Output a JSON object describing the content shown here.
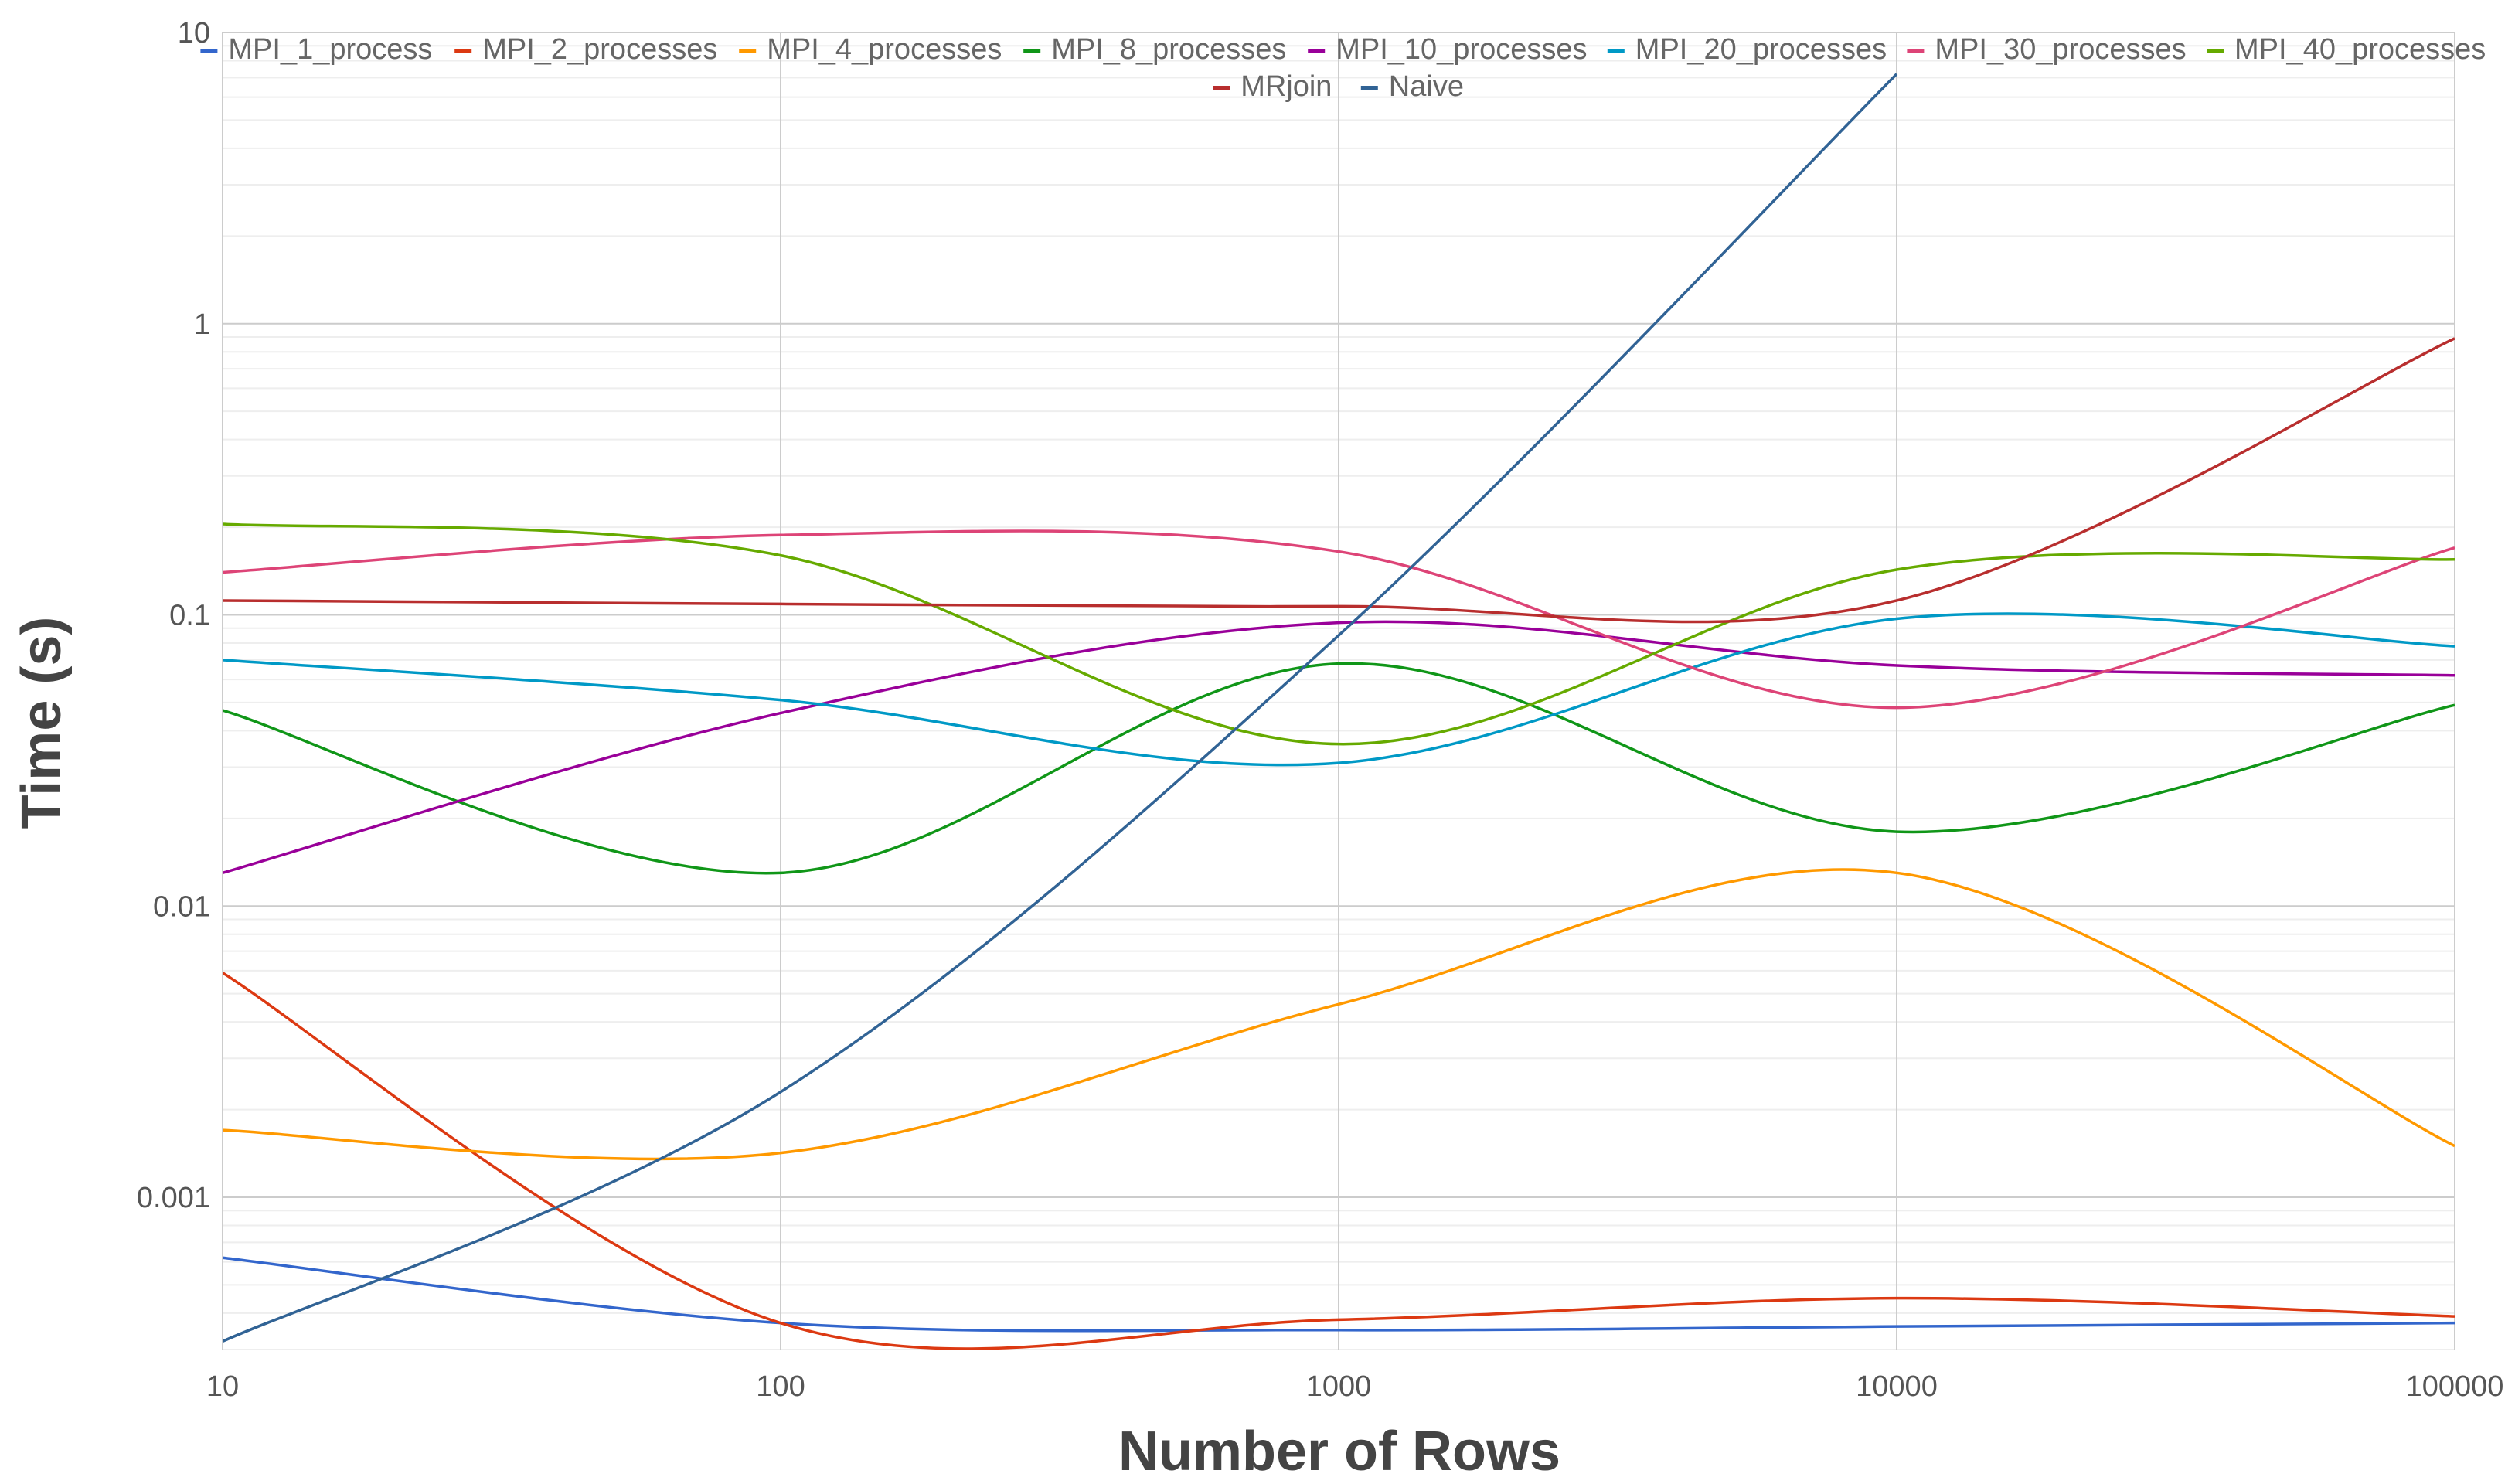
{
  "chart_data": {
    "type": "line",
    "title": "",
    "xlabel": "Number of Rows",
    "ylabel": "Time (s)",
    "x_scale": "log",
    "y_scale": "log",
    "xlim": [
      10,
      100000
    ],
    "ylim": [
      0.0003,
      10
    ],
    "grid": true,
    "legend_position": "top",
    "x": [
      10,
      100,
      1000,
      10000,
      100000
    ],
    "x_tick_labels": [
      "10",
      "100",
      "1000",
      "10000",
      "100000"
    ],
    "y_tick_values": [
      10,
      1,
      0.1,
      0.01,
      0.001
    ],
    "y_tick_labels": [
      "10",
      "1",
      "0.1",
      "0.01",
      "0.001"
    ],
    "series": [
      {
        "name": "MPI_1_process",
        "color": "#3366cc",
        "values": [
          0.00062,
          0.00037,
          0.00035,
          0.00036,
          0.00037
        ]
      },
      {
        "name": "MPI_2_processes",
        "color": "#dc3912",
        "values": [
          0.0059,
          0.00037,
          0.00038,
          0.00045,
          0.00039
        ]
      },
      {
        "name": "MPI_4_processes",
        "color": "#ff9900",
        "values": [
          0.0017,
          0.00142,
          0.0046,
          0.013,
          0.0015
        ]
      },
      {
        "name": "MPI_8_processes",
        "color": "#109618",
        "values": [
          0.047,
          0.013,
          0.068,
          0.018,
          0.049
        ]
      },
      {
        "name": "MPI_10_processes",
        "color": "#990099",
        "values": [
          0.013,
          0.046,
          0.094,
          0.067,
          0.062
        ]
      },
      {
        "name": "MPI_20_processes",
        "color": "#0099c6",
        "values": [
          0.07,
          0.051,
          0.031,
          0.097,
          0.078
        ]
      },
      {
        "name": "MPI_30_processes",
        "color": "#dd4477",
        "values": [
          0.14,
          0.188,
          0.165,
          0.048,
          0.17
        ]
      },
      {
        "name": "MPI_40_processes",
        "color": "#66aa00",
        "values": [
          0.205,
          0.16,
          0.036,
          0.143,
          0.155
        ]
      },
      {
        "name": "MRjoin",
        "color": "#b82e2e",
        "values": [
          0.112,
          0.109,
          0.107,
          0.112,
          0.89
        ]
      },
      {
        "name": "Naive",
        "color": "#316395",
        "values": [
          0.00032,
          0.0023,
          0.085,
          7.2,
          null
        ]
      }
    ]
  }
}
